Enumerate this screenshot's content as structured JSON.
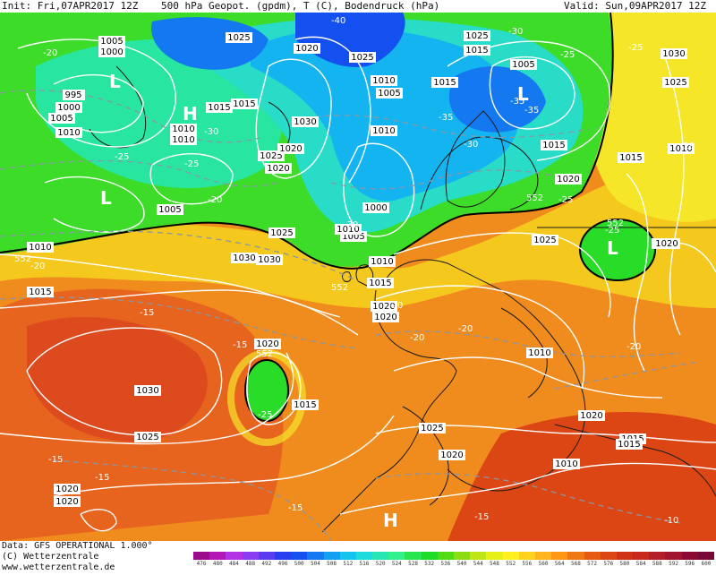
{
  "header": {
    "init": "Init: Fri,07APR2017 12Z",
    "title": "500 hPa Geopot. (gpdm), T (C), Bodendruck (hPa)",
    "valid": "Valid: Sun,09APR2017 12Z"
  },
  "footer": {
    "data_source": "Data: GFS OPERATIONAL 1.000°",
    "copyright": "(C) Wetterzentrale",
    "website": "www.wetterzentrale.de"
  },
  "legend": {
    "values": [
      "476",
      "480",
      "484",
      "488",
      "492",
      "496",
      "500",
      "504",
      "508",
      "512",
      "516",
      "520",
      "524",
      "528",
      "532",
      "536",
      "540",
      "544",
      "548",
      "552",
      "556",
      "560",
      "564",
      "568",
      "572",
      "576",
      "580",
      "584",
      "588",
      "592",
      "596",
      "600"
    ],
    "colors": [
      "#9a0c8c",
      "#b418b4",
      "#b432e6",
      "#8c3cf0",
      "#5a3cf0",
      "#283cf0",
      "#1450f0",
      "#1478f0",
      "#14a0f0",
      "#14c3ee",
      "#1edcdc",
      "#28e6b4",
      "#32f08c",
      "#28e650",
      "#1edc28",
      "#50dc14",
      "#8cdc14",
      "#bee614",
      "#e6f014",
      "#fff01e",
      "#ffd21e",
      "#ffb41e",
      "#ff9614",
      "#f07814",
      "#e65a14",
      "#dc4614",
      "#d23214",
      "#c8281e",
      "#b41e28",
      "#a0142d",
      "#8c0a32",
      "#780a37"
    ]
  },
  "map_labels": {
    "pressure": [
      "1005",
      "1000",
      "995",
      "1000",
      "1005",
      "1010",
      "1010",
      "1015",
      "1020",
      "1030",
      "1025",
      "1020",
      "1005",
      "1010",
      "1025",
      "1020",
      "1030",
      "1025",
      "1005",
      "1010",
      "1015",
      "1010",
      "1005",
      "1000",
      "1005",
      "1015",
      "1025",
      "1030",
      "1025",
      "1020",
      "1015",
      "1010",
      "1020",
      "1015",
      "1030",
      "1025",
      "1020",
      "1015",
      "1010",
      "1020",
      "1025",
      "1020",
      "1025",
      "1010",
      "1015",
      "1020",
      "1015",
      "1010",
      "1020",
      "1025",
      "1020",
      "1015",
      "1030",
      "1015",
      "1015",
      "1010",
      "1020",
      "1020",
      "1010"
    ],
    "temperature": [
      "-20",
      "-25",
      "-25",
      "-20",
      "-30",
      "-35",
      "-40",
      "-30",
      "-35",
      "-35",
      "-30",
      "-25",
      "-25",
      "-30",
      "-20",
      "-25",
      "-15",
      "-20",
      "-25",
      "-20",
      "-20",
      "-20",
      "-20",
      "-15",
      "-15",
      "-15",
      "-15",
      "-10",
      "-15",
      "-25"
    ],
    "geopotential": [
      "552",
      "552",
      "552",
      "552",
      "552"
    ],
    "centers": [
      "L",
      "H",
      "L",
      "L",
      "L",
      "H"
    ]
  }
}
